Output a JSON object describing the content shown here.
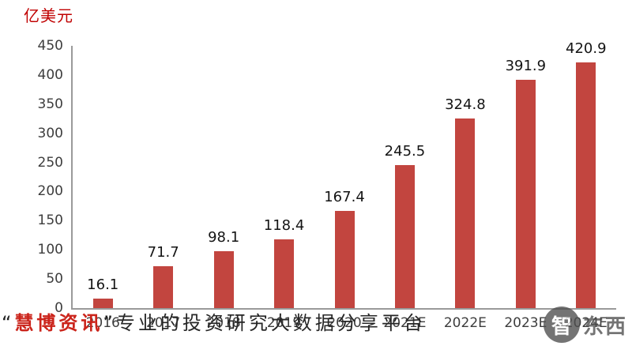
{
  "chart_data": {
    "type": "bar",
    "categories": [
      "2016",
      "2017",
      "2018",
      "2019",
      "2020",
      "2021E",
      "2022E",
      "2023E",
      "2024E"
    ],
    "values": [
      16.1,
      71.7,
      98.1,
      118.4,
      167.4,
      245.5,
      324.8,
      391.9,
      420.9
    ],
    "title": "",
    "xlabel": "",
    "ylabel": "亿美元",
    "ylim": [
      0,
      450
    ],
    "ytick_step": 50,
    "grid": false,
    "legend": false,
    "bar_color": "#C2453F",
    "ylabel_color": "#C00000",
    "value_label_color": "#141414",
    "axis_tick_color": "#3d3d3d"
  },
  "watermark": {
    "quote_open": "“",
    "brand": "慧博资讯",
    "brand_color": "#CB241B",
    "quote_close": "”",
    "tagline": "专业的投资研究大数据分享平台"
  },
  "logo": {
    "badge": "智",
    "text": "东西"
  }
}
